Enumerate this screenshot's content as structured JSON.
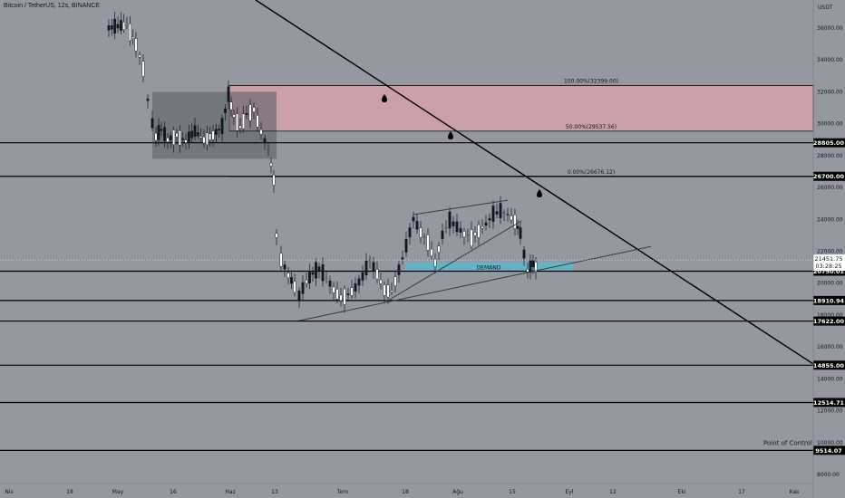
{
  "header": {
    "title": "Bitcoin / TetherUS, 12s, BINANCE"
  },
  "colors": {
    "background": "#9598a1",
    "line": "#000000",
    "supply_zone": "#f7a6ad",
    "gray_box": "#5d606b",
    "demand": "#5fb6c9",
    "candle_up": "#ffffff",
    "candle_down": "#131722"
  },
  "chart_data": {
    "type": "candlestick",
    "y_axis": {
      "unit_label": "USDT",
      "ticks": [
        "36000.00",
        "34000.00",
        "32000.00",
        "30000.00",
        "28000.00",
        "26000.00",
        "24000.00",
        "22000.00",
        "20000.00",
        "18000.00",
        "16000.00",
        "14000.00",
        "12000.00",
        "10000.00",
        "8000.00"
      ],
      "tick_values": [
        36000,
        34000,
        32000,
        30000,
        28000,
        26000,
        24000,
        22000,
        20000,
        18000,
        16000,
        14000,
        12000,
        10000,
        8000
      ]
    },
    "x_axis": {
      "ticks": [
        "Nis",
        "18",
        "May",
        "16",
        "Haz",
        "13",
        "Tem",
        "18",
        "Ağu",
        "15",
        "Eyl",
        "12",
        "Eki",
        "17",
        "Kas"
      ]
    },
    "horizontal_levels": [
      {
        "label": "28805.00",
        "value": 28805
      },
      {
        "label": "26700.00",
        "value": 26700
      },
      {
        "label": "20750.01",
        "value": 20750.01
      },
      {
        "label": "18910.94",
        "value": 18910.94
      },
      {
        "label": "17622.00",
        "value": 17622
      },
      {
        "label": "14855.00",
        "value": 14855
      },
      {
        "label": "12514.71",
        "value": 12514.71
      },
      {
        "label": "9514.07",
        "value": 9514.07
      }
    ],
    "current_price": {
      "value": "21451.75",
      "countdown": "03:28:25"
    },
    "fibonacci": [
      {
        "label": "100.00%(32399.00)",
        "value": 32399
      },
      {
        "label": "50.00%(29537.56)",
        "value": 29537.56
      },
      {
        "label": "0.00%(26676.12)",
        "value": 26676.12
      }
    ],
    "annotations": {
      "demand_label": "DEMAND",
      "point_of_control": "Point of Control"
    }
  }
}
